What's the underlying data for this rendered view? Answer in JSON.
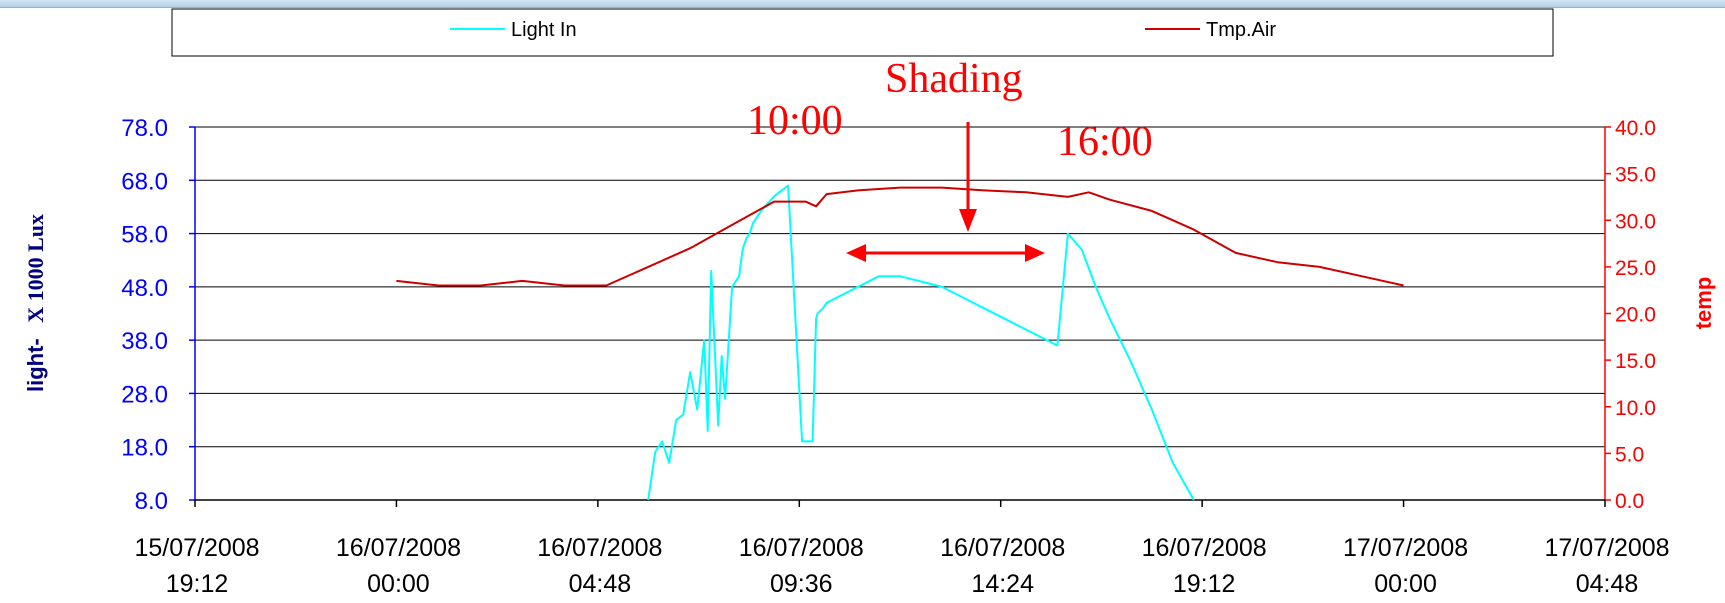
{
  "chart_data": {
    "type": "line",
    "title": "",
    "legend": {
      "placement": "top",
      "entries": [
        {
          "name": "Light In",
          "color": "#00ffff"
        },
        {
          "name": "Tmp.Air",
          "color": "#cc0000"
        }
      ]
    },
    "x_axis": {
      "range": [
        "2008-07-15T19:12",
        "2008-07-17T04:48"
      ],
      "ticks": [
        {
          "date": "15/07/2008",
          "time": "19:12"
        },
        {
          "date": "16/07/2008",
          "time": "00:00"
        },
        {
          "date": "16/07/2008",
          "time": "04:48"
        },
        {
          "date": "16/07/2008",
          "time": "09:36"
        },
        {
          "date": "16/07/2008",
          "time": "14:24"
        },
        {
          "date": "16/07/2008",
          "time": "19:12"
        },
        {
          "date": "17/07/2008",
          "time": "00:00"
        },
        {
          "date": "17/07/2008",
          "time": "04:48"
        }
      ]
    },
    "y_left": {
      "label_parts": [
        "light-",
        "X 1000 Lux"
      ],
      "range": [
        8,
        78
      ],
      "ticks": [
        "8.0",
        "18.0",
        "28.0",
        "38.0",
        "48.0",
        "58.0",
        "68.0",
        "78.0"
      ],
      "color": "#0000ff"
    },
    "y_right": {
      "label": "temp",
      "range": [
        0,
        40
      ],
      "ticks": [
        "0.0",
        "5.0",
        "10.0",
        "15.0",
        "20.0",
        "25.0",
        "30.0",
        "35.0",
        "40.0"
      ],
      "color": "#ff0000"
    },
    "grid": true,
    "series": [
      {
        "name": "Light In",
        "axis": "left",
        "color": "#00ffff",
        "x": [
          "2008-07-16T06:00",
          "2008-07-16T06:10",
          "2008-07-16T06:20",
          "2008-07-16T06:30",
          "2008-07-16T06:40",
          "2008-07-16T06:50",
          "2008-07-16T07:00",
          "2008-07-16T07:10",
          "2008-07-16T07:20",
          "2008-07-16T07:25",
          "2008-07-16T07:30",
          "2008-07-16T07:40",
          "2008-07-16T07:45",
          "2008-07-16T07:50",
          "2008-07-16T08:00",
          "2008-07-16T08:05",
          "2008-07-16T08:10",
          "2008-07-16T08:15",
          "2008-07-16T08:20",
          "2008-07-16T08:25",
          "2008-07-16T08:30",
          "2008-07-16T08:40",
          "2008-07-16T09:00",
          "2008-07-16T09:20",
          "2008-07-16T09:40",
          "2008-07-16T09:55",
          "2008-07-16T10:00",
          "2008-07-16T10:02",
          "2008-07-16T10:10",
          "2008-07-16T10:15",
          "2008-07-16T10:30",
          "2008-07-16T11:00",
          "2008-07-16T11:30",
          "2008-07-16T12:00",
          "2008-07-16T12:30",
          "2008-07-16T13:00",
          "2008-07-16T13:30",
          "2008-07-16T14:00",
          "2008-07-16T14:30",
          "2008-07-16T15:00",
          "2008-07-16T15:30",
          "2008-07-16T15:45",
          "2008-07-16T16:00",
          "2008-07-16T16:20",
          "2008-07-16T16:40",
          "2008-07-16T17:00",
          "2008-07-16T17:30",
          "2008-07-16T18:00",
          "2008-07-16T18:30",
          "2008-07-16T19:00"
        ],
        "y": [
          8,
          17,
          19,
          15,
          23,
          24,
          32,
          25,
          38,
          21,
          51,
          22,
          35,
          27,
          48,
          49,
          50,
          55,
          57,
          58,
          60,
          62,
          65,
          67,
          19,
          19,
          42,
          43,
          44,
          45,
          46,
          48,
          50,
          50,
          49,
          48,
          46,
          44,
          42,
          40,
          38,
          37,
          58,
          55,
          48,
          42,
          34,
          25,
          15,
          8
        ]
      },
      {
        "name": "Tmp.Air",
        "axis": "right",
        "color": "#cc0000",
        "x": [
          "2008-07-16T00:00",
          "2008-07-16T01:00",
          "2008-07-16T02:00",
          "2008-07-16T03:00",
          "2008-07-16T04:00",
          "2008-07-16T05:00",
          "2008-07-16T06:00",
          "2008-07-16T07:00",
          "2008-07-16T08:00",
          "2008-07-16T09:00",
          "2008-07-16T09:45",
          "2008-07-16T10:00",
          "2008-07-16T10:15",
          "2008-07-16T11:00",
          "2008-07-16T12:00",
          "2008-07-16T13:00",
          "2008-07-16T14:00",
          "2008-07-16T15:00",
          "2008-07-16T16:00",
          "2008-07-16T16:30",
          "2008-07-16T17:00",
          "2008-07-16T18:00",
          "2008-07-16T19:00",
          "2008-07-16T20:00",
          "2008-07-16T21:00",
          "2008-07-16T22:00",
          "2008-07-16T23:00",
          "2008-07-17T00:00"
        ],
        "y": [
          23.5,
          23.0,
          23.0,
          23.5,
          23.0,
          23.0,
          25.0,
          27.0,
          29.5,
          32.0,
          32.0,
          31.5,
          32.8,
          33.2,
          33.5,
          33.5,
          33.2,
          33.0,
          32.5,
          33.0,
          32.2,
          31.0,
          29.0,
          26.5,
          25.5,
          25.0,
          24.0,
          23.0
        ]
      }
    ],
    "annotations": [
      {
        "text": "Shading",
        "color": "#ff0000"
      },
      {
        "text": "10:00",
        "color": "#ff0000"
      },
      {
        "text": "16:00",
        "color": "#ff0000"
      }
    ]
  }
}
